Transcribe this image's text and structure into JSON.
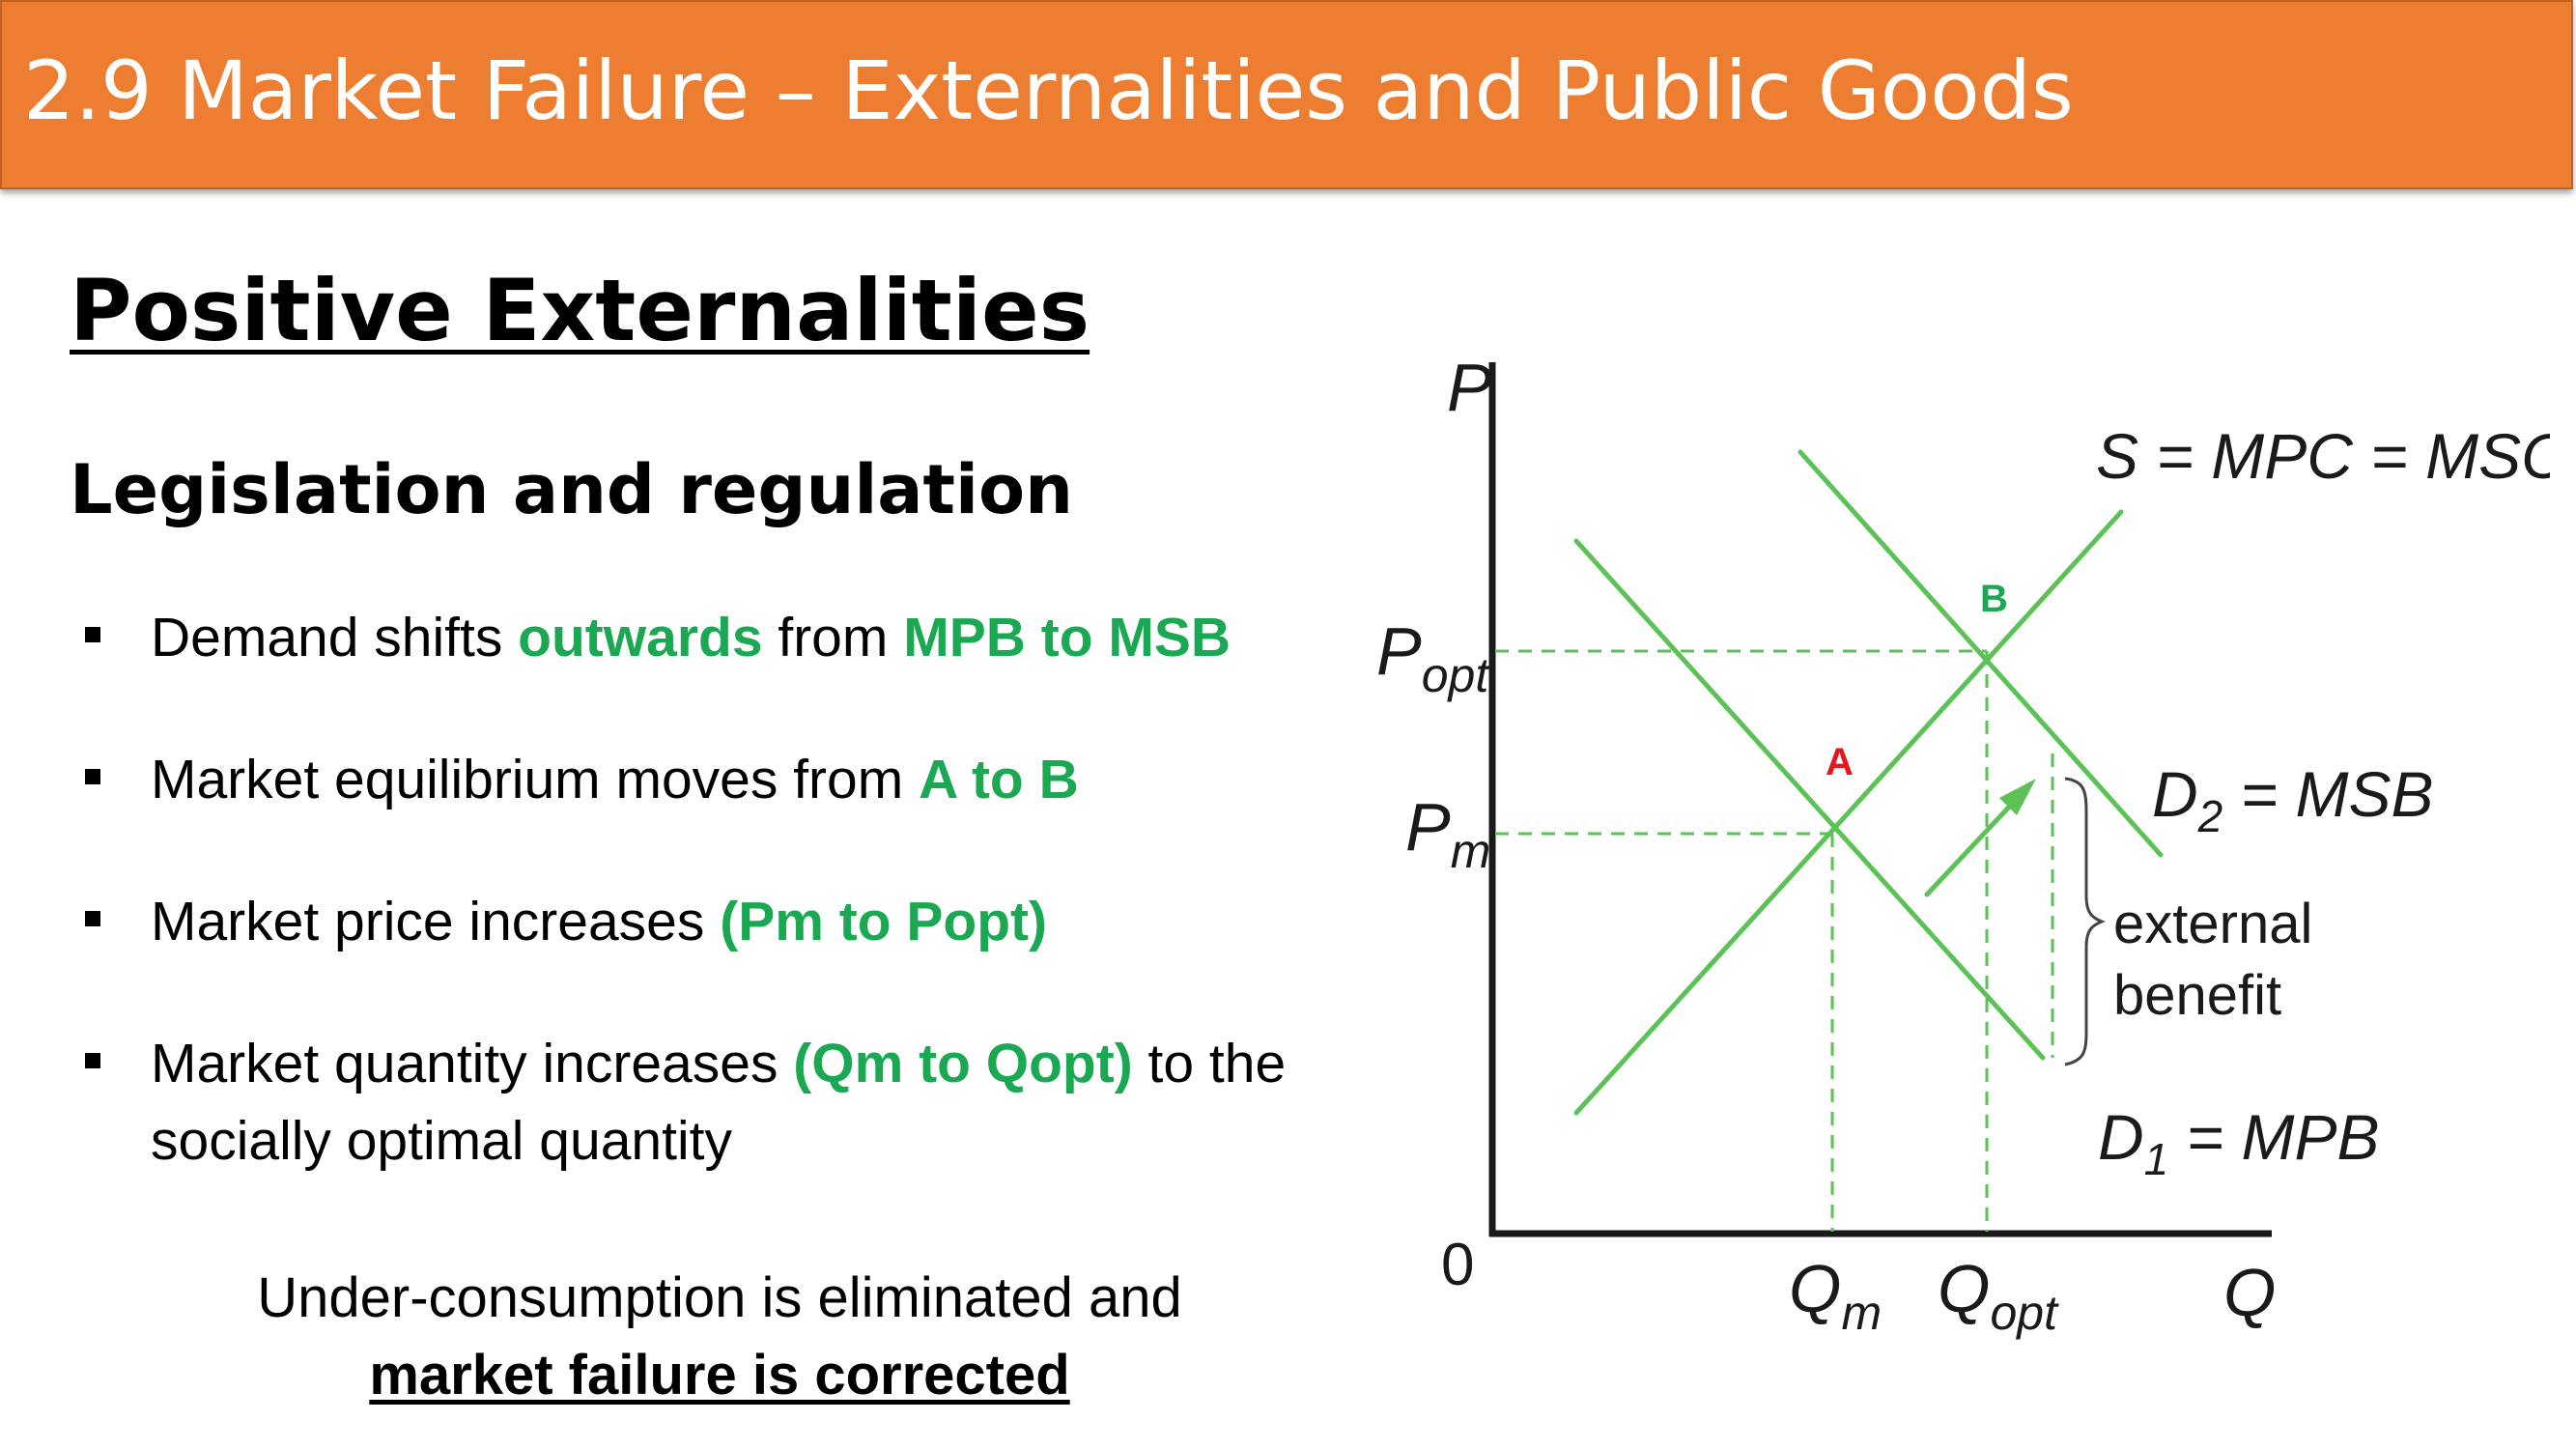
{
  "header": {
    "title": "2.9 Market Failure – Externalities and Public Goods"
  },
  "section_title": "Positive Externalities",
  "subtitle": "Legislation and regulation",
  "bullets": [
    {
      "pre": "Demand shifts ",
      "hl1": "outwards",
      "mid": " from ",
      "hl2": "MPB to MSB"
    },
    {
      "pre": "Market equilibrium moves from ",
      "hl1": "A to B"
    },
    {
      "pre": "Market price increases ",
      "hl1": "(Pm to Popt)"
    },
    {
      "pre": "Market quantity increases ",
      "hl1": "(Qm to Qopt)",
      "post": " to the socially optimal quantity"
    }
  ],
  "conclusion": {
    "line1": "Under-consumption is eliminated and",
    "line2": "market failure is corrected"
  },
  "colors": {
    "header_bg": "#ed7d31",
    "highlight_green": "#1aa853",
    "curve_green": "#5cc157",
    "point_a_red": "#e8141e"
  },
  "diagram": {
    "axis_y": "P",
    "axis_x": "Q",
    "origin": "0",
    "p_opt": "P",
    "p_opt_sub": "opt",
    "p_m": "P",
    "p_m_sub": "m",
    "q_m": "Q",
    "q_m_sub": "m",
    "q_opt": "Q",
    "q_opt_sub": "opt",
    "supply": "S = MPC = MSC",
    "d2": "D",
    "d2_sub": "2",
    "d2_rest": " = MSB",
    "d1": "D",
    "d1_sub": "1",
    "d1_rest": " = MPB",
    "point_a": "A",
    "point_b": "B",
    "ext_line1": "external",
    "ext_line2": "benefit"
  }
}
